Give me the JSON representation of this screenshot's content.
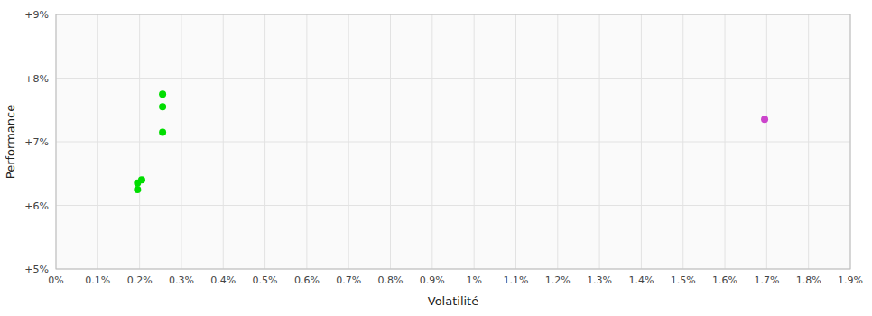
{
  "chart_data": {
    "type": "scatter",
    "xlabel": "Volatilité",
    "ylabel": "Performance",
    "xlim": [
      0.0,
      0.019
    ],
    "ylim": [
      0.05,
      0.09
    ],
    "xticks": [
      {
        "value": 0.0,
        "label": "0%"
      },
      {
        "value": 0.001,
        "label": "0.1%"
      },
      {
        "value": 0.002,
        "label": "0.2%"
      },
      {
        "value": 0.003,
        "label": "0.3%"
      },
      {
        "value": 0.004,
        "label": "0.4%"
      },
      {
        "value": 0.005,
        "label": "0.5%"
      },
      {
        "value": 0.006,
        "label": "0.6%"
      },
      {
        "value": 0.007,
        "label": "0.7%"
      },
      {
        "value": 0.008,
        "label": "0.8%"
      },
      {
        "value": 0.009,
        "label": "0.9%"
      },
      {
        "value": 0.01,
        "label": "1%"
      },
      {
        "value": 0.011,
        "label": "1.1%"
      },
      {
        "value": 0.012,
        "label": "1.2%"
      },
      {
        "value": 0.013,
        "label": "1.3%"
      },
      {
        "value": 0.014,
        "label": "1.4%"
      },
      {
        "value": 0.015,
        "label": "1.5%"
      },
      {
        "value": 0.016,
        "label": "1.6%"
      },
      {
        "value": 0.017,
        "label": "1.7%"
      },
      {
        "value": 0.018,
        "label": "1.8%"
      },
      {
        "value": 0.019,
        "label": "1.9%"
      }
    ],
    "yticks": [
      {
        "value": 0.05,
        "label": "+5%"
      },
      {
        "value": 0.06,
        "label": "+6%"
      },
      {
        "value": 0.07,
        "label": "+7%"
      },
      {
        "value": 0.08,
        "label": "+8%"
      },
      {
        "value": 0.09,
        "label": "+9%"
      }
    ],
    "grid": true,
    "series": [
      {
        "color": "#00dd00",
        "x": [
          0.00195,
          0.00195,
          0.00205,
          0.00255,
          0.00255,
          0.00255
        ],
        "values": [
          0.0635,
          0.0625,
          0.064,
          0.0775,
          0.0755,
          0.0715
        ]
      },
      {
        "color": "#cc44cc",
        "x": [
          0.01695
        ],
        "values": [
          0.0735
        ]
      }
    ]
  }
}
